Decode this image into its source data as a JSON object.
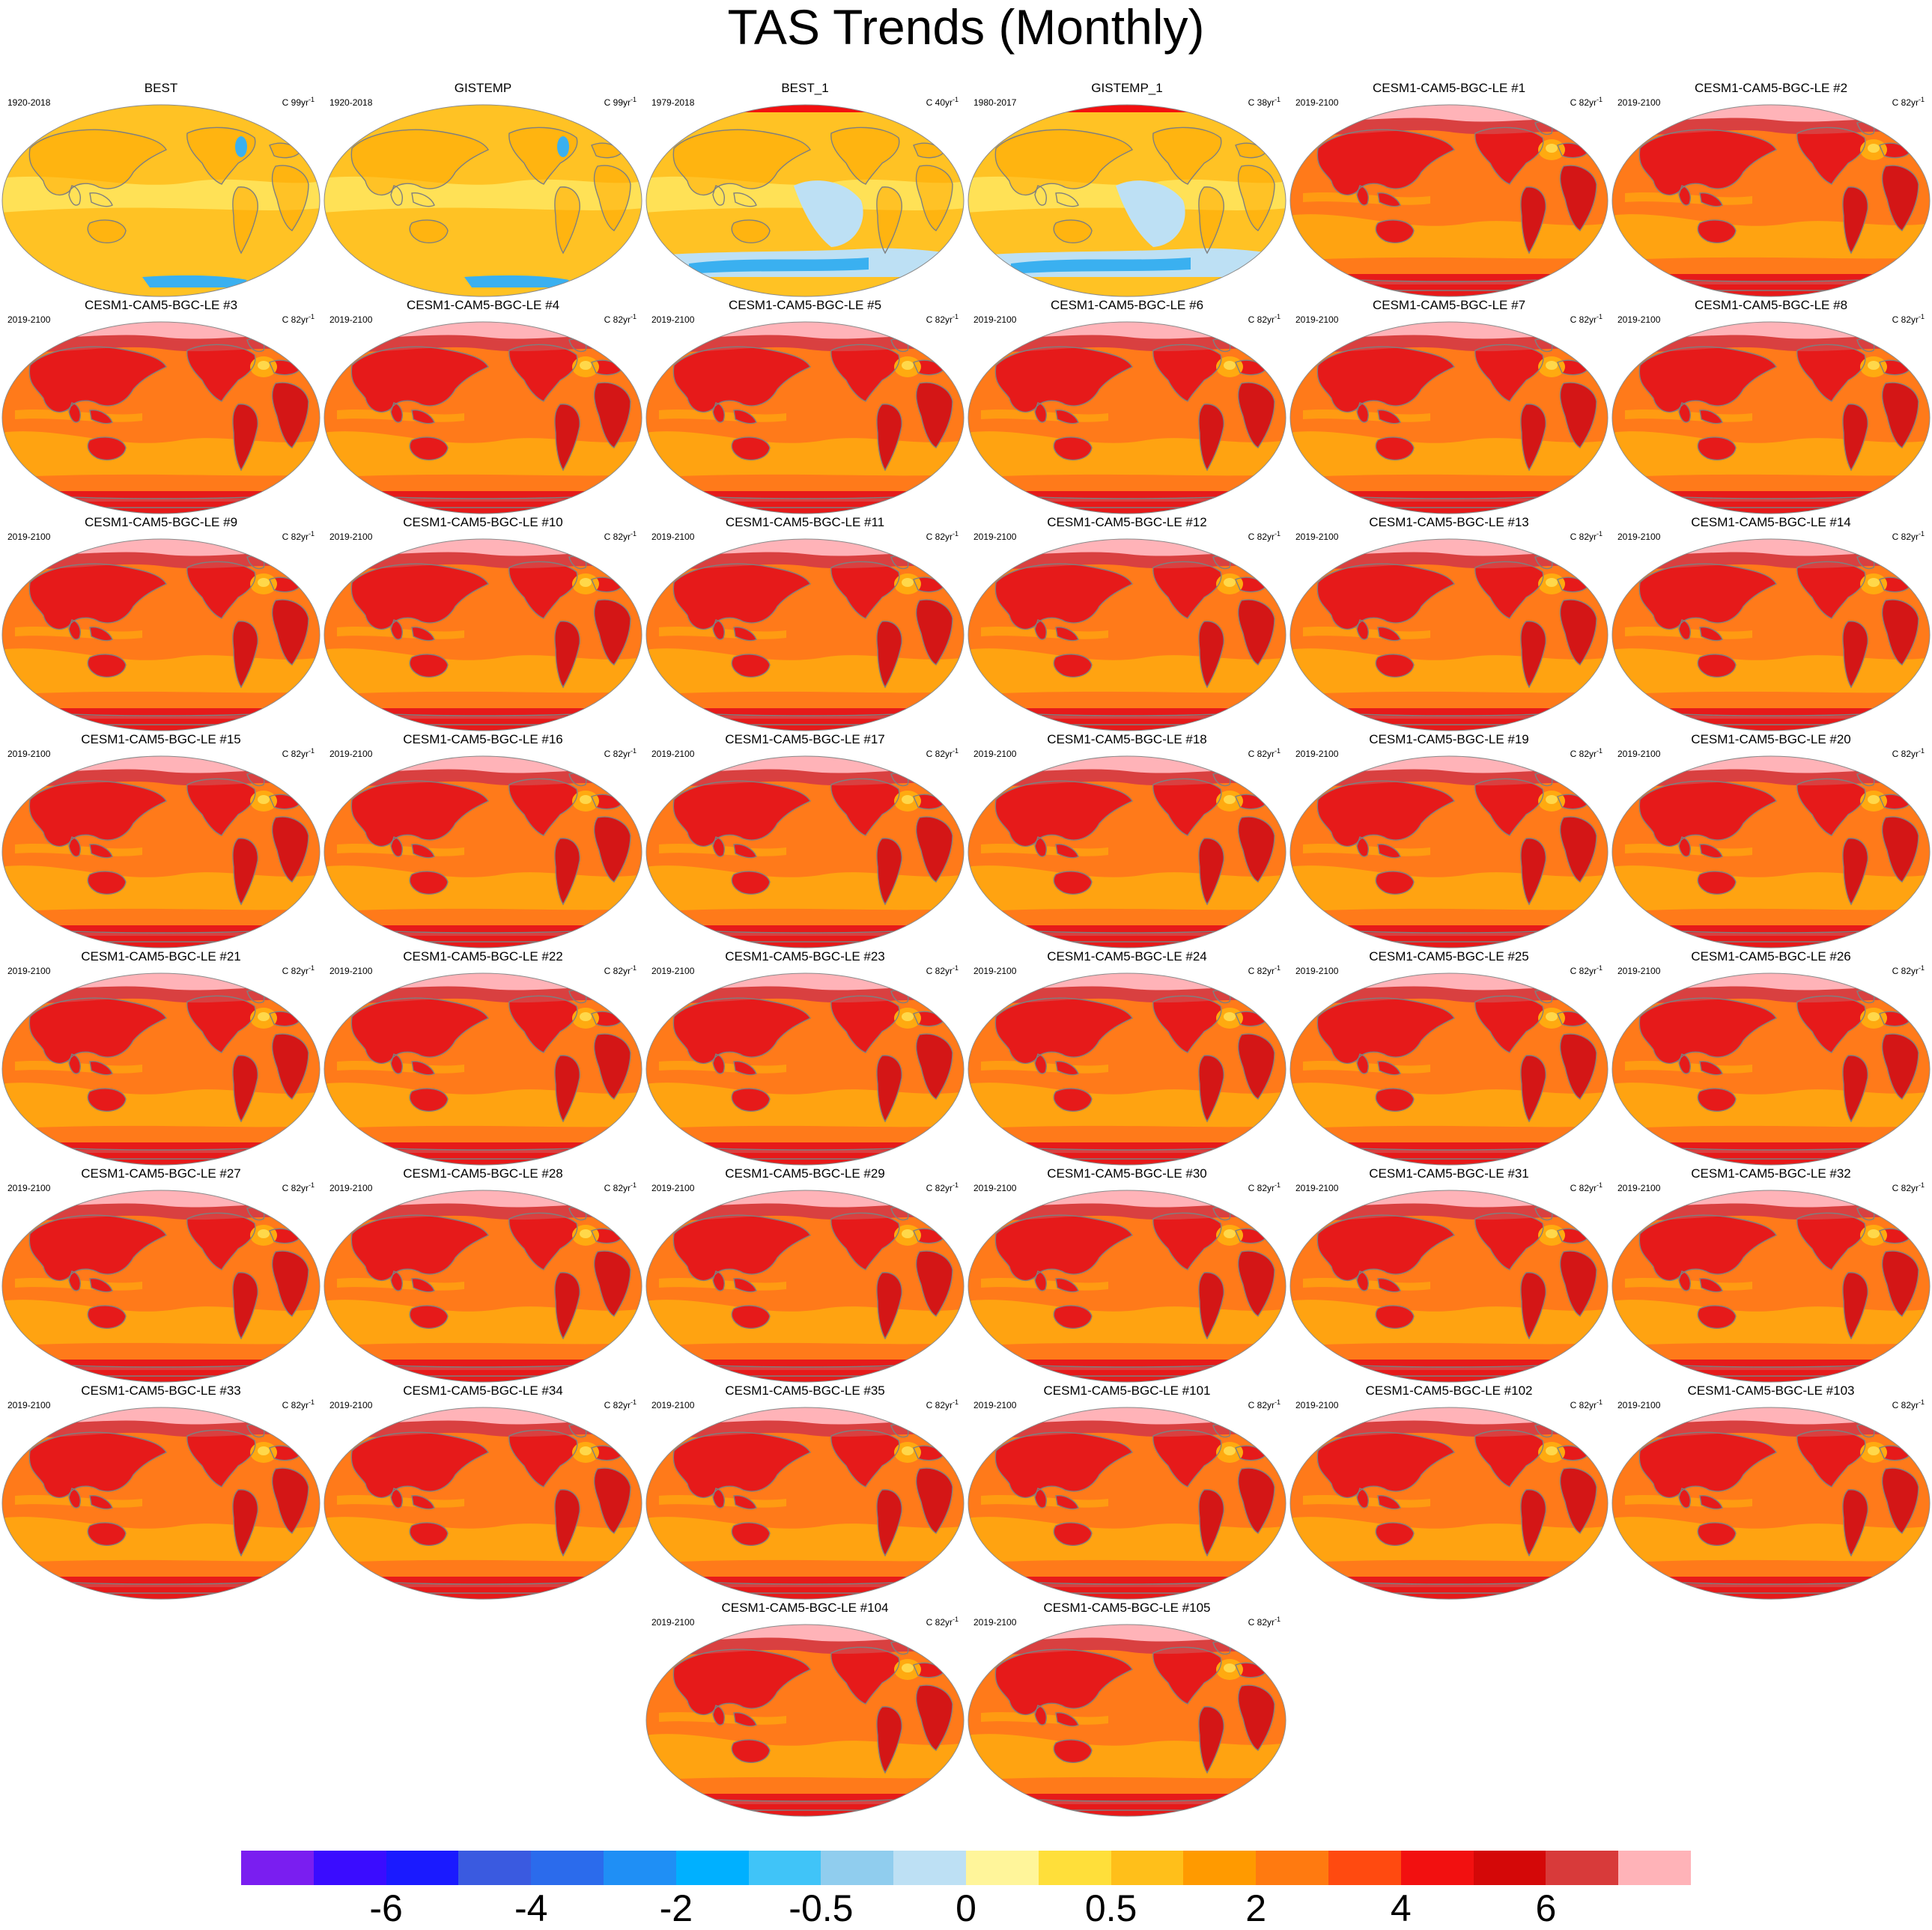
{
  "figure": {
    "title": "TAS Trends (Monthly)"
  },
  "palette": {
    "land_outline": "#7f7f7f",
    "panel_border": "#8a8a8a",
    "obs_base": "#ffc224",
    "obs_light": "#ffe45c",
    "obs_warm": "#ffaa00",
    "obs_cool": "#bde0f4",
    "obs_cold": "#3ab0f0",
    "model_ocean": "#ff7a1a",
    "model_cool": "#ffaa10",
    "model_land": "#e61a1a",
    "model_hot": "#d41616",
    "model_arctic": "#ffb3b8",
    "model_arctic_edge": "#d94040"
  },
  "panels": [
    {
      "title": "BEST",
      "period": "1920-2018",
      "units": "C 99yr",
      "exp": "-1",
      "kind": "obs"
    },
    {
      "title": "GISTEMP",
      "period": "1920-2018",
      "units": "C 99yr",
      "exp": "-1",
      "kind": "obs"
    },
    {
      "title": "BEST_1",
      "period": "1979-2018",
      "units": "C 40yr",
      "exp": "-1",
      "kind": "obs_recent"
    },
    {
      "title": "GISTEMP_1",
      "period": "1980-2017",
      "units": "C 38yr",
      "exp": "-1",
      "kind": "obs_recent"
    },
    {
      "title": "CESM1-CAM5-BGC-LE #1",
      "period": "2019-2100",
      "units": "C 82yr",
      "exp": "-1",
      "kind": "model"
    },
    {
      "title": "CESM1-CAM5-BGC-LE #2",
      "period": "2019-2100",
      "units": "C 82yr",
      "exp": "-1",
      "kind": "model"
    },
    {
      "title": "CESM1-CAM5-BGC-LE #3",
      "period": "2019-2100",
      "units": "C 82yr",
      "exp": "-1",
      "kind": "model"
    },
    {
      "title": "CESM1-CAM5-BGC-LE #4",
      "period": "2019-2100",
      "units": "C 82yr",
      "exp": "-1",
      "kind": "model"
    },
    {
      "title": "CESM1-CAM5-BGC-LE #5",
      "period": "2019-2100",
      "units": "C 82yr",
      "exp": "-1",
      "kind": "model"
    },
    {
      "title": "CESM1-CAM5-BGC-LE #6",
      "period": "2019-2100",
      "units": "C 82yr",
      "exp": "-1",
      "kind": "model"
    },
    {
      "title": "CESM1-CAM5-BGC-LE #7",
      "period": "2019-2100",
      "units": "C 82yr",
      "exp": "-1",
      "kind": "model"
    },
    {
      "title": "CESM1-CAM5-BGC-LE #8",
      "period": "2019-2100",
      "units": "C 82yr",
      "exp": "-1",
      "kind": "model"
    },
    {
      "title": "CESM1-CAM5-BGC-LE #9",
      "period": "2019-2100",
      "units": "C 82yr",
      "exp": "-1",
      "kind": "model"
    },
    {
      "title": "CESM1-CAM5-BGC-LE #10",
      "period": "2019-2100",
      "units": "C 82yr",
      "exp": "-1",
      "kind": "model"
    },
    {
      "title": "CESM1-CAM5-BGC-LE #11",
      "period": "2019-2100",
      "units": "C 82yr",
      "exp": "-1",
      "kind": "model"
    },
    {
      "title": "CESM1-CAM5-BGC-LE #12",
      "period": "2019-2100",
      "units": "C 82yr",
      "exp": "-1",
      "kind": "model"
    },
    {
      "title": "CESM1-CAM5-BGC-LE #13",
      "period": "2019-2100",
      "units": "C 82yr",
      "exp": "-1",
      "kind": "model"
    },
    {
      "title": "CESM1-CAM5-BGC-LE #14",
      "period": "2019-2100",
      "units": "C 82yr",
      "exp": "-1",
      "kind": "model"
    },
    {
      "title": "CESM1-CAM5-BGC-LE #15",
      "period": "2019-2100",
      "units": "C 82yr",
      "exp": "-1",
      "kind": "model"
    },
    {
      "title": "CESM1-CAM5-BGC-LE #16",
      "period": "2019-2100",
      "units": "C 82yr",
      "exp": "-1",
      "kind": "model"
    },
    {
      "title": "CESM1-CAM5-BGC-LE #17",
      "period": "2019-2100",
      "units": "C 82yr",
      "exp": "-1",
      "kind": "model"
    },
    {
      "title": "CESM1-CAM5-BGC-LE #18",
      "period": "2019-2100",
      "units": "C 82yr",
      "exp": "-1",
      "kind": "model"
    },
    {
      "title": "CESM1-CAM5-BGC-LE #19",
      "period": "2019-2100",
      "units": "C 82yr",
      "exp": "-1",
      "kind": "model"
    },
    {
      "title": "CESM1-CAM5-BGC-LE #20",
      "period": "2019-2100",
      "units": "C 82yr",
      "exp": "-1",
      "kind": "model"
    },
    {
      "title": "CESM1-CAM5-BGC-LE #21",
      "period": "2019-2100",
      "units": "C 82yr",
      "exp": "-1",
      "kind": "model"
    },
    {
      "title": "CESM1-CAM5-BGC-LE #22",
      "period": "2019-2100",
      "units": "C 82yr",
      "exp": "-1",
      "kind": "model"
    },
    {
      "title": "CESM1-CAM5-BGC-LE #23",
      "period": "2019-2100",
      "units": "C 82yr",
      "exp": "-1",
      "kind": "model"
    },
    {
      "title": "CESM1-CAM5-BGC-LE #24",
      "period": "2019-2100",
      "units": "C 82yr",
      "exp": "-1",
      "kind": "model"
    },
    {
      "title": "CESM1-CAM5-BGC-LE #25",
      "period": "2019-2100",
      "units": "C 82yr",
      "exp": "-1",
      "kind": "model"
    },
    {
      "title": "CESM1-CAM5-BGC-LE #26",
      "period": "2019-2100",
      "units": "C 82yr",
      "exp": "-1",
      "kind": "model"
    },
    {
      "title": "CESM1-CAM5-BGC-LE #27",
      "period": "2019-2100",
      "units": "C 82yr",
      "exp": "-1",
      "kind": "model"
    },
    {
      "title": "CESM1-CAM5-BGC-LE #28",
      "period": "2019-2100",
      "units": "C 82yr",
      "exp": "-1",
      "kind": "model"
    },
    {
      "title": "CESM1-CAM5-BGC-LE #29",
      "period": "2019-2100",
      "units": "C 82yr",
      "exp": "-1",
      "kind": "model"
    },
    {
      "title": "CESM1-CAM5-BGC-LE #30",
      "period": "2019-2100",
      "units": "C 82yr",
      "exp": "-1",
      "kind": "model"
    },
    {
      "title": "CESM1-CAM5-BGC-LE #31",
      "period": "2019-2100",
      "units": "C 82yr",
      "exp": "-1",
      "kind": "model"
    },
    {
      "title": "CESM1-CAM5-BGC-LE #32",
      "period": "2019-2100",
      "units": "C 82yr",
      "exp": "-1",
      "kind": "model"
    },
    {
      "title": "CESM1-CAM5-BGC-LE #33",
      "period": "2019-2100",
      "units": "C 82yr",
      "exp": "-1",
      "kind": "model"
    },
    {
      "title": "CESM1-CAM5-BGC-LE #34",
      "period": "2019-2100",
      "units": "C 82yr",
      "exp": "-1",
      "kind": "model"
    },
    {
      "title": "CESM1-CAM5-BGC-LE #35",
      "period": "2019-2100",
      "units": "C 82yr",
      "exp": "-1",
      "kind": "model"
    },
    {
      "title": "CESM1-CAM5-BGC-LE #101",
      "period": "2019-2100",
      "units": "C 82yr",
      "exp": "-1",
      "kind": "model"
    },
    {
      "title": "CESM1-CAM5-BGC-LE #102",
      "period": "2019-2100",
      "units": "C 82yr",
      "exp": "-1",
      "kind": "model"
    },
    {
      "title": "CESM1-CAM5-BGC-LE #103",
      "period": "2019-2100",
      "units": "C 82yr",
      "exp": "-1",
      "kind": "model"
    },
    {
      "title": "CESM1-CAM5-BGC-LE #104",
      "period": "2019-2100",
      "units": "C 82yr",
      "exp": "-1",
      "kind": "model"
    },
    {
      "title": "CESM1-CAM5-BGC-LE #105",
      "period": "2019-2100",
      "units": "C 82yr",
      "exp": "-1",
      "kind": "model"
    }
  ],
  "colorbar": {
    "colors": [
      "#7a1ef0",
      "#3a0cff",
      "#1a1aff",
      "#3a5ae0",
      "#2b6bec",
      "#1f8ff5",
      "#00b0ff",
      "#40c4f8",
      "#90cdee",
      "#bde0f4",
      "#fff59a",
      "#ffdf3a",
      "#ffbf1a",
      "#ff9a00",
      "#ff7a10",
      "#ff4a10",
      "#f21010",
      "#d40808",
      "#d83a3a",
      "#ffb3b8"
    ],
    "labels": [
      {
        "text": "-6",
        "boundary": 2
      },
      {
        "text": "-4",
        "boundary": 4
      },
      {
        "text": "-2",
        "boundary": 6
      },
      {
        "text": "-0.5",
        "boundary": 8
      },
      {
        "text": "0",
        "boundary": 10
      },
      {
        "text": "0.5",
        "boundary": 12
      },
      {
        "text": "2",
        "boundary": 14
      },
      {
        "text": "4",
        "boundary": 16
      },
      {
        "text": "6",
        "boundary": 18
      }
    ]
  }
}
